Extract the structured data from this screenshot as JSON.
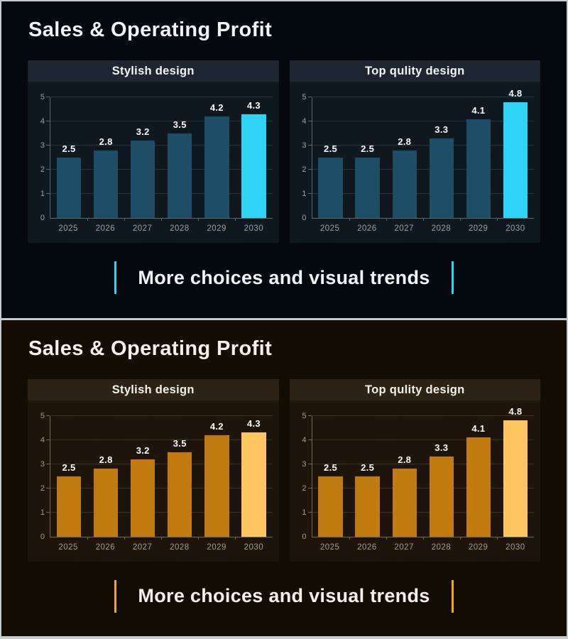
{
  "panels": [
    {
      "title": "Sales & Operating Profit",
      "caption": "More choices and visual trends",
      "charts_ref": "top",
      "theme": {
        "panel_bg": "#04090f",
        "card_bg": "#0e161e",
        "header_bg": "#1e2731",
        "bar_color": "#1d4e66",
        "highlight_color": "#2ed3f6",
        "accent_color": "#2ed3f6",
        "grid_color": "#2b353f",
        "axis_color": "#5a6873",
        "tick_label_color": "#97a3ac",
        "text_color": "#f2f5f7"
      }
    },
    {
      "title": "Sales & Operating Profit",
      "caption": "More choices and visual trends",
      "charts_ref": "bottom",
      "theme": {
        "panel_bg": "#130c03",
        "card_bg": "#1c140a",
        "header_bg": "#2c2316",
        "bar_color": "#c17a10",
        "highlight_color": "#ffc55f",
        "accent_color": "#f5a228",
        "grid_color": "#3d3422",
        "axis_color": "#74674e",
        "tick_label_color": "#a89d89",
        "text_color": "#f4f1ec"
      }
    }
  ],
  "chart_data": [
    {
      "type": "bar",
      "panel": "top",
      "title": "Stylish design",
      "categories": [
        "2025",
        "2026",
        "2027",
        "2028",
        "2029",
        "2030"
      ],
      "values": [
        2.5,
        2.8,
        3.2,
        3.5,
        4.2,
        4.3
      ],
      "highlight_index": 5,
      "ylim": [
        0,
        5
      ],
      "yticks": [
        0,
        1,
        2,
        3,
        4,
        5
      ],
      "grid": true,
      "legend": false,
      "xlabel": "",
      "ylabel": ""
    },
    {
      "type": "bar",
      "panel": "top",
      "title": "Top qulity design",
      "categories": [
        "2025",
        "2026",
        "2027",
        "2028",
        "2029",
        "2030"
      ],
      "values": [
        2.5,
        2.5,
        2.8,
        3.3,
        4.1,
        4.8
      ],
      "highlight_index": 5,
      "ylim": [
        0,
        5
      ],
      "yticks": [
        0,
        1,
        2,
        3,
        4,
        5
      ],
      "grid": true,
      "legend": false,
      "xlabel": "",
      "ylabel": ""
    },
    {
      "type": "bar",
      "panel": "bottom",
      "title": "Stylish design",
      "categories": [
        "2025",
        "2026",
        "2027",
        "2028",
        "2029",
        "2030"
      ],
      "values": [
        2.5,
        2.8,
        3.2,
        3.5,
        4.2,
        4.3
      ],
      "highlight_index": 5,
      "ylim": [
        0,
        5
      ],
      "yticks": [
        0,
        1,
        2,
        3,
        4,
        5
      ],
      "grid": true,
      "legend": false,
      "xlabel": "",
      "ylabel": ""
    },
    {
      "type": "bar",
      "panel": "bottom",
      "title": "Top qulity design",
      "categories": [
        "2025",
        "2026",
        "2027",
        "2028",
        "2029",
        "2030"
      ],
      "values": [
        2.5,
        2.5,
        2.8,
        3.3,
        4.1,
        4.8
      ],
      "highlight_index": 5,
      "ylim": [
        0,
        5
      ],
      "yticks": [
        0,
        1,
        2,
        3,
        4,
        5
      ],
      "grid": true,
      "legend": false,
      "xlabel": "",
      "ylabel": ""
    }
  ]
}
